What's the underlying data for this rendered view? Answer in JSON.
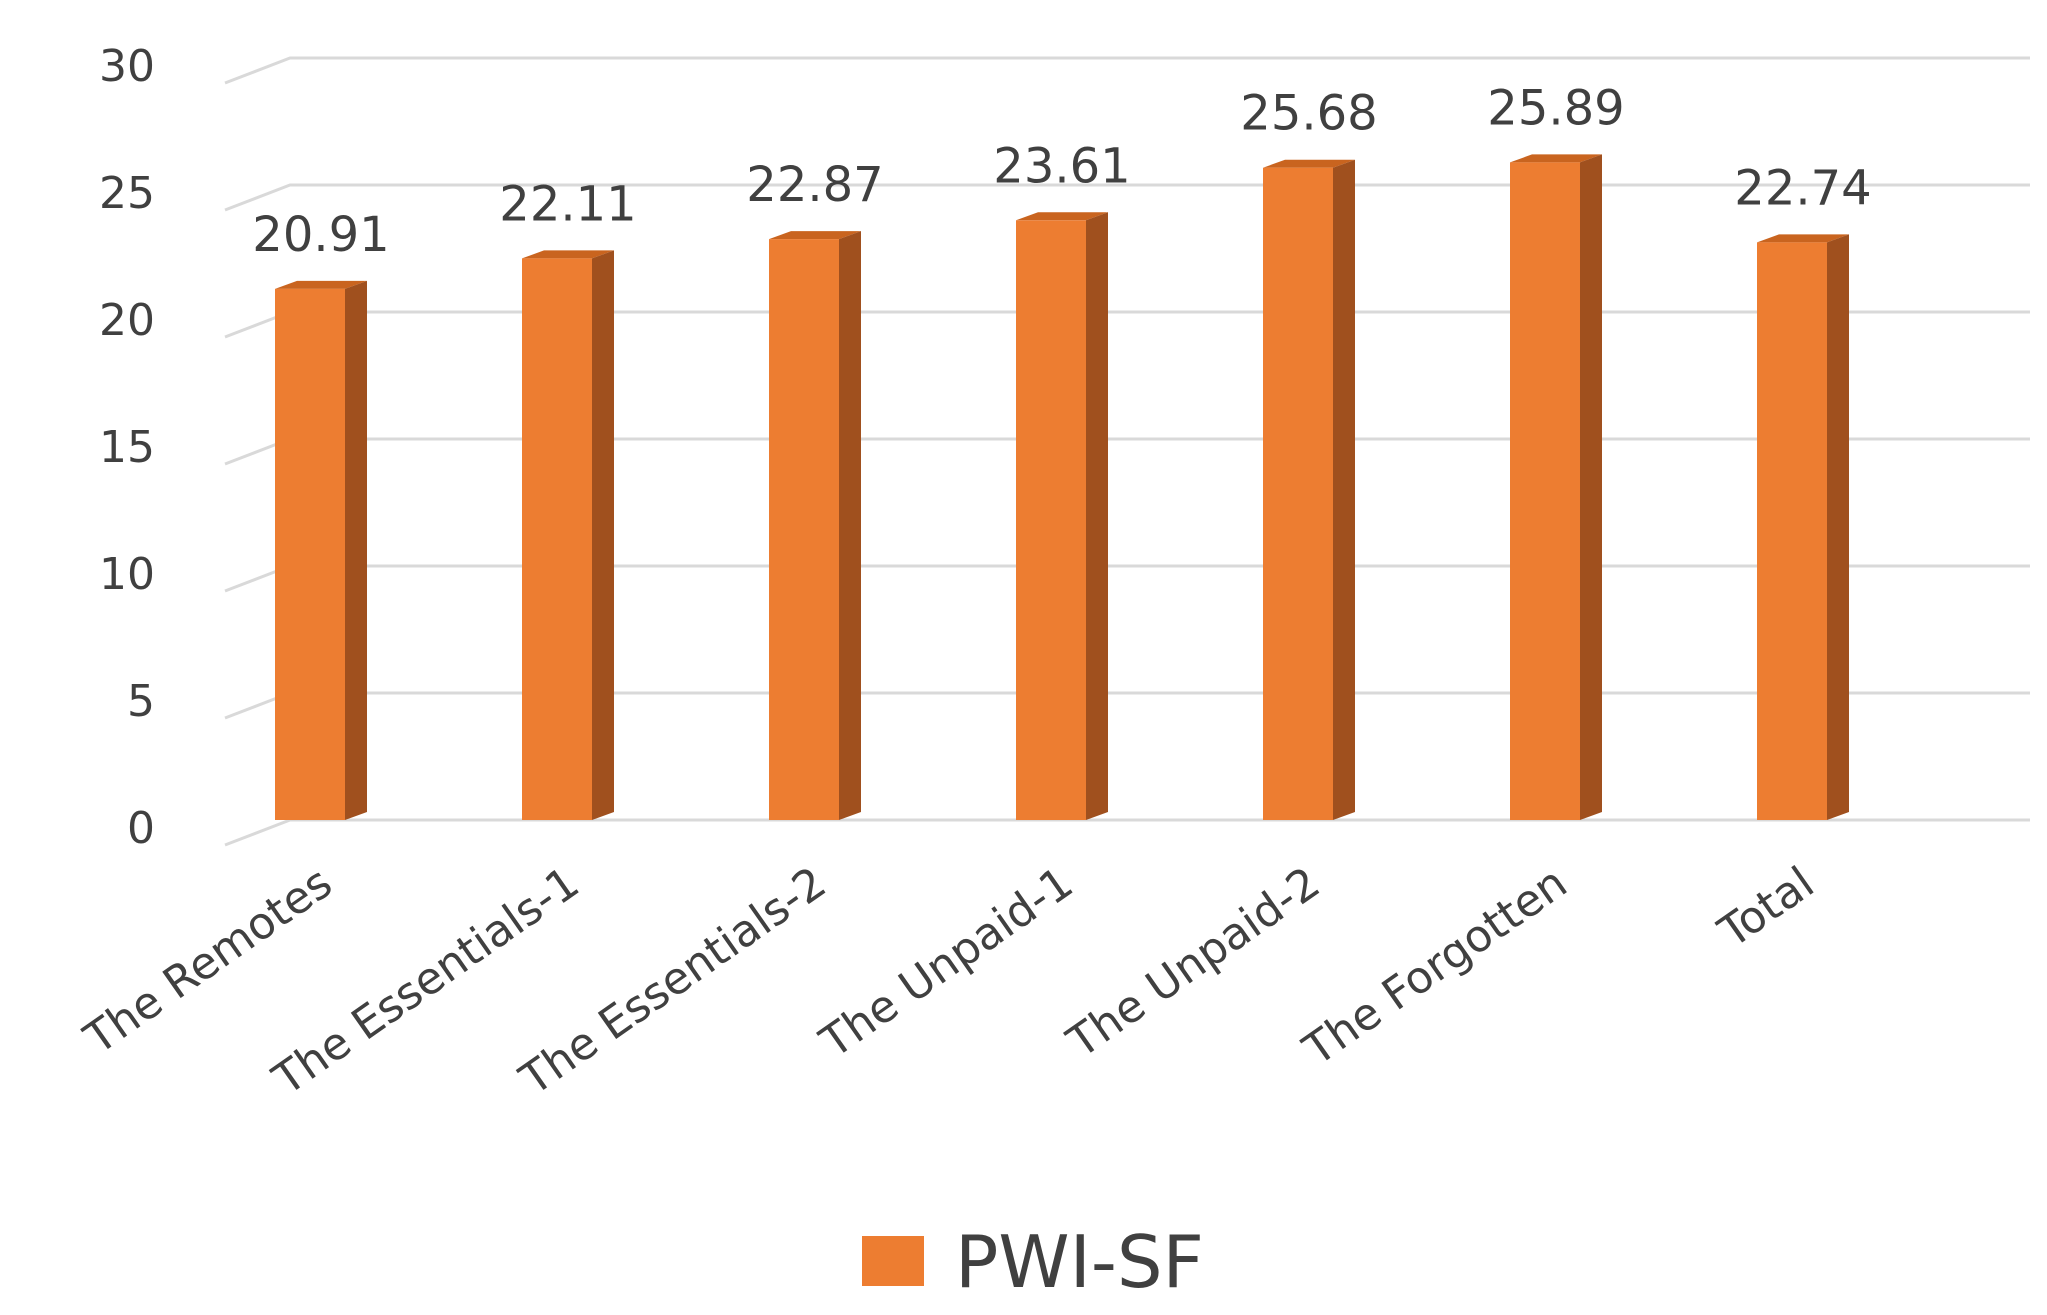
{
  "chart_data": {
    "type": "bar",
    "title": "",
    "xlabel": "",
    "ylabel": "",
    "categories": [
      "The Remotes",
      "The Essentials-1",
      "The Essentials-2",
      "The Unpaid-1",
      "The Unpaid-2",
      "The Forgotten",
      "Total"
    ],
    "series": [
      {
        "name": "PWI-SF",
        "values": [
          20.91,
          22.11,
          22.87,
          23.61,
          25.68,
          25.89,
          22.74
        ],
        "labels": [
          "20.91",
          "22.11",
          "22.87",
          "23.61",
          "25.68",
          "25.89",
          "22.74"
        ],
        "color": "#ED7D31"
      }
    ],
    "ylim": [
      0,
      30
    ],
    "yticks": [
      0,
      5,
      10,
      15,
      20,
      25,
      30
    ],
    "grid": true,
    "legend": "bottom",
    "style": "3d-column"
  },
  "colors": {
    "bar_front": "#ED7D31",
    "bar_side": "#A0501E",
    "bar_top": "#C9641F",
    "grid": "#D9D9D9",
    "text": "#404040"
  }
}
